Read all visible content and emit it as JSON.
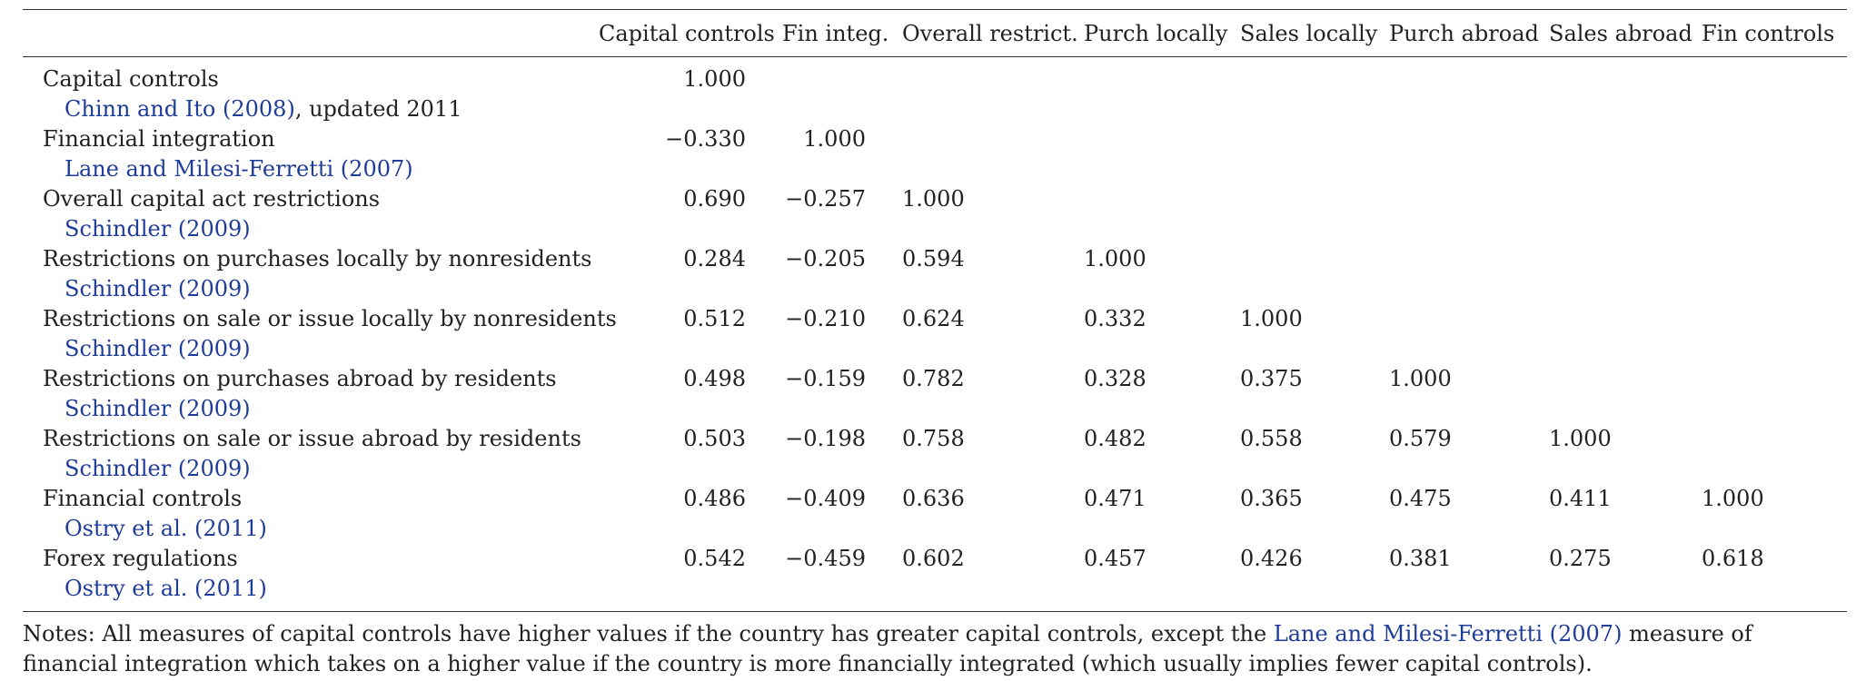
{
  "table": {
    "headers": [
      "",
      "Capital controls",
      "Fin integ.",
      "Overall restrict.",
      "Purch locally",
      "Sales locally",
      "Purch abroad",
      "Sales abroad",
      "Fin controls"
    ],
    "rows": [
      {
        "label": "Capital controls",
        "cite": "Chinn and Ito (2008)",
        "cite_suffix": ", updated 2011",
        "values": [
          "1.000",
          "",
          "",
          "",
          "",
          "",
          "",
          ""
        ]
      },
      {
        "label": "Financial integration",
        "cite": "Lane and Milesi-Ferretti (2007)",
        "cite_suffix": "",
        "values": [
          "−0.330",
          "1.000",
          "",
          "",
          "",
          "",
          "",
          ""
        ]
      },
      {
        "label": "Overall capital act restrictions",
        "cite": "Schindler (2009)",
        "cite_suffix": "",
        "values": [
          "0.690",
          "−0.257",
          "1.000",
          "",
          "",
          "",
          "",
          ""
        ]
      },
      {
        "label": "Restrictions on purchases locally by nonresidents",
        "cite": "Schindler (2009)",
        "cite_suffix": "",
        "values": [
          "0.284",
          "−0.205",
          "0.594",
          "1.000",
          "",
          "",
          "",
          ""
        ]
      },
      {
        "label": "Restrictions on sale or issue locally by nonresidents",
        "cite": "Schindler (2009)",
        "cite_suffix": "",
        "values": [
          "0.512",
          "−0.210",
          "0.624",
          "0.332",
          "1.000",
          "",
          "",
          ""
        ]
      },
      {
        "label": "Restrictions on purchases abroad by residents",
        "cite": "Schindler (2009)",
        "cite_suffix": "",
        "values": [
          "0.498",
          "−0.159",
          "0.782",
          "0.328",
          "0.375",
          "1.000",
          "",
          ""
        ]
      },
      {
        "label": "Restrictions on sale or issue abroad by residents",
        "cite": "Schindler (2009)",
        "cite_suffix": "",
        "values": [
          "0.503",
          "−0.198",
          "0.758",
          "0.482",
          "0.558",
          "0.579",
          "1.000",
          ""
        ]
      },
      {
        "label": "Financial controls",
        "cite": "Ostry et al. (2011)",
        "cite_suffix": "",
        "values": [
          "0.486",
          "−0.409",
          "0.636",
          "0.471",
          "0.365",
          "0.475",
          "0.411",
          "1.000"
        ]
      },
      {
        "label": "Forex regulations",
        "cite": "Ostry et al. (2011)",
        "cite_suffix": "",
        "values": [
          "0.542",
          "−0.459",
          "0.602",
          "0.457",
          "0.426",
          "0.381",
          "0.275",
          "0.618"
        ]
      }
    ]
  },
  "notes": {
    "prefix": "Notes: All measures of capital controls have higher values if the country has greater capital controls, except the ",
    "link": "Lane and Milesi-Ferretti (2007)",
    "suffix": " measure of financial integration which takes on a higher value if the country is more financially integrated (which usually implies fewer capital controls)."
  },
  "colors": {
    "text": "#222222",
    "link": "#1f3c99",
    "rule": "#333333"
  }
}
